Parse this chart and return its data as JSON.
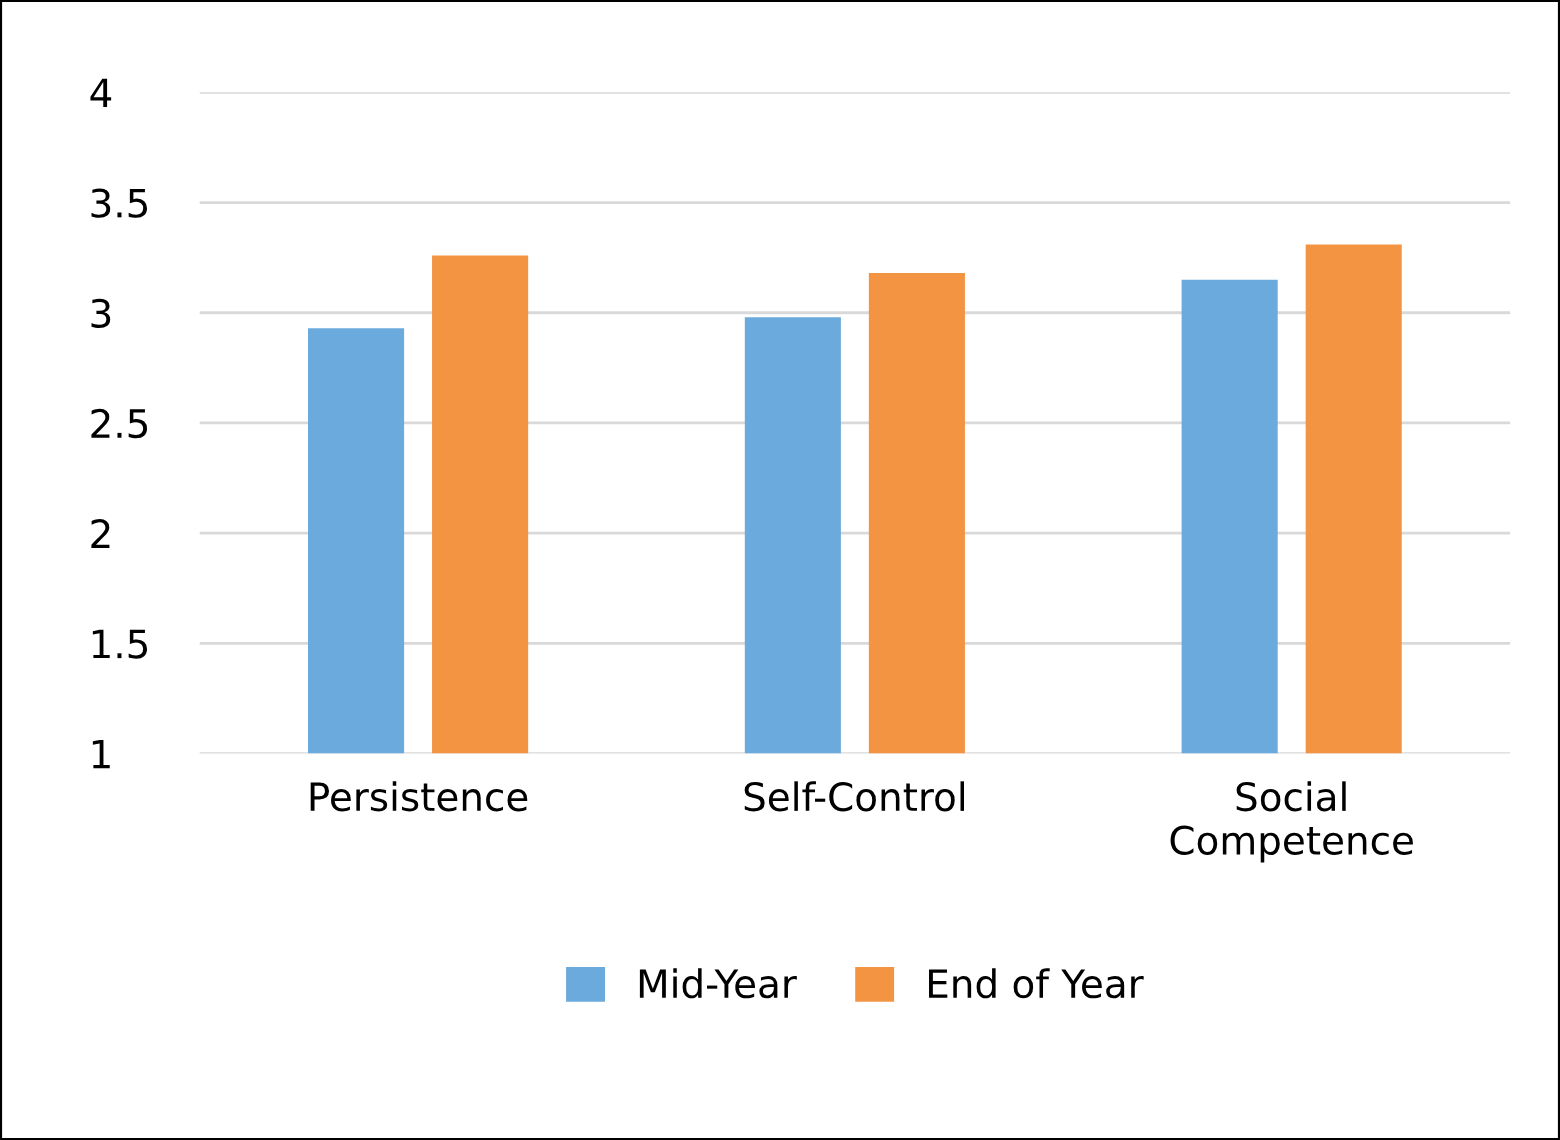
{
  "chart_data": {
    "type": "bar",
    "categories": [
      "Persistence",
      "Self-Control",
      "Social\nCompetence"
    ],
    "series": [
      {
        "name": "Mid-Year",
        "color": "#6aaadc",
        "values": [
          2.93,
          2.98,
          3.15
        ]
      },
      {
        "name": "End of Year",
        "color": "#f39443",
        "values": [
          3.26,
          3.18,
          3.31
        ]
      }
    ],
    "ylim": [
      1,
      4
    ],
    "yticks": [
      1,
      1.5,
      2,
      2.5,
      3,
      3.5,
      4
    ],
    "grid": "y",
    "legend": "bottom"
  }
}
